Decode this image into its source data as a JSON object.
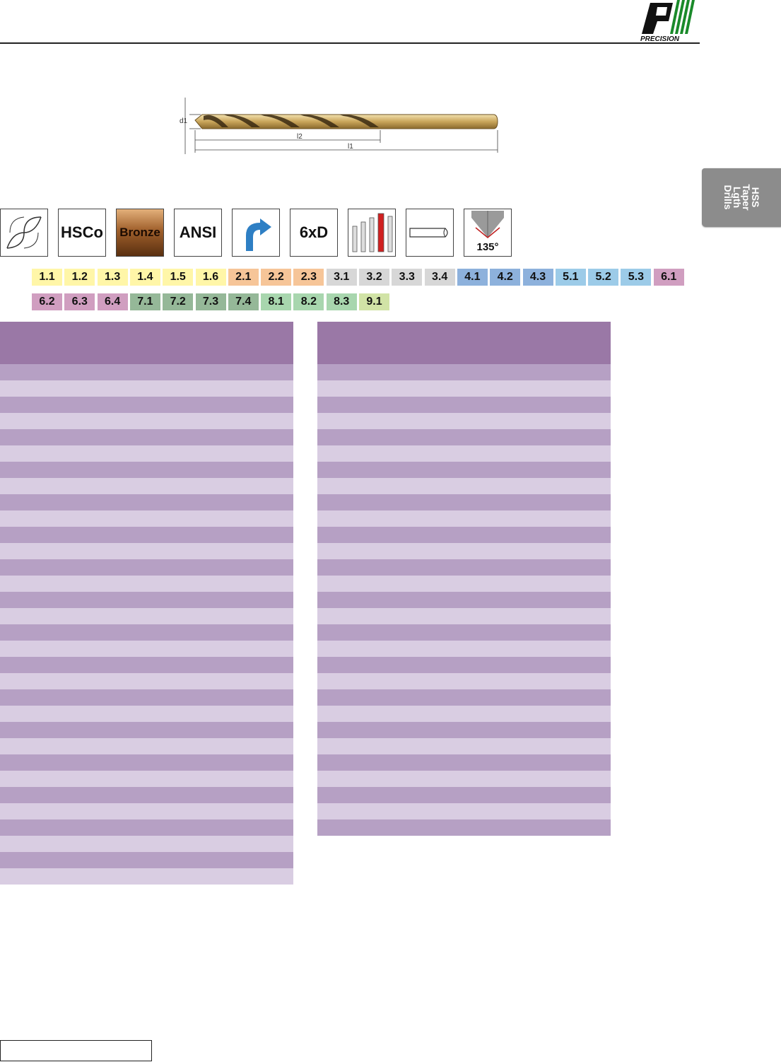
{
  "logo": {
    "text": "PRECISION",
    "icon": "precision-logo-icon"
  },
  "drill_diagram": {
    "labels": {
      "d1": "d1",
      "l2": "l2",
      "l1": "l1"
    }
  },
  "side_tab": {
    "text": "HSS\nTaper\nLgth\nDrills"
  },
  "icons": [
    {
      "name": "flute-profile-icon",
      "text": ""
    },
    {
      "name": "hsco-material-icon",
      "text": "HSCo"
    },
    {
      "name": "bronze-coating-icon",
      "text": "Bronze"
    },
    {
      "name": "ansi-standard-icon",
      "text": "ANSI"
    },
    {
      "name": "right-hand-rotation-icon",
      "text": ""
    },
    {
      "name": "depth-6xd-icon",
      "text": "6xD"
    },
    {
      "name": "length-series-icon",
      "text": ""
    },
    {
      "name": "straight-shank-icon",
      "text": ""
    },
    {
      "name": "point-angle-135-icon",
      "text": "135°"
    }
  ],
  "material_groups": {
    "colors": {
      "1": "#fff6a8",
      "2": "#f6c598",
      "3": "#d7d7d7",
      "4": "#8db1dc",
      "5": "#9ccbe8",
      "6": "#d09ec0",
      "7": "#95b898",
      "8": "#a8d6ae",
      "9": "#d1e3a6"
    },
    "row1": [
      "1.1",
      "1.2",
      "1.3",
      "1.4",
      "1.5",
      "1.6",
      "2.1",
      "2.2",
      "2.3",
      "3.1",
      "3.2",
      "3.3",
      "3.4",
      "4.1",
      "4.2",
      "4.3",
      "5.1",
      "5.2",
      "5.3",
      "6.1"
    ],
    "row2": [
      "6.2",
      "6.3",
      "6.4",
      "7.1",
      "7.2",
      "7.3",
      "7.4",
      "8.1",
      "8.2",
      "8.3",
      "9.1"
    ]
  },
  "tables": {
    "left_rows": 32,
    "right_rows": 29,
    "header_color": "#9a78a6",
    "row_dark": "#b6a0c4",
    "row_light": "#d9cde2"
  }
}
